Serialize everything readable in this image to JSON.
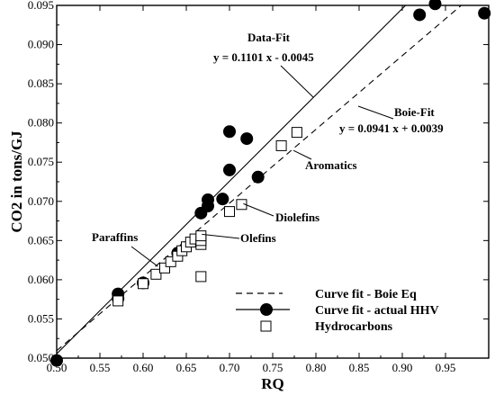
{
  "chart_data": {
    "type": "scatter",
    "xlabel": "RQ",
    "ylabel": "CO2 in tons/GJ",
    "xlim": [
      0.5,
      1.0
    ],
    "ylim": [
      0.05,
      0.095
    ],
    "x_ticks": [
      "0.50",
      "0.55",
      "0.60",
      "0.65",
      "0.70",
      "0.75",
      "0.80",
      "0.85",
      "0.90",
      "0.95"
    ],
    "y_ticks": [
      "0.050",
      "0.055",
      "0.060",
      "0.065",
      "0.070",
      "0.075",
      "0.080",
      "0.085",
      "0.090",
      "0.095"
    ],
    "grid": false,
    "series": [
      {
        "name": "Curve fit - actual HHV",
        "marker": "filled-circle",
        "color": "#000000",
        "points": [
          [
            0.5,
            0.0497
          ],
          [
            0.571,
            0.0582
          ],
          [
            0.571,
            0.0576
          ],
          [
            0.6,
            0.0596
          ],
          [
            0.64,
            0.0634
          ],
          [
            0.667,
            0.0685
          ],
          [
            0.675,
            0.0702
          ],
          [
            0.675,
            0.0694
          ],
          [
            0.692,
            0.0703
          ],
          [
            0.7,
            0.074
          ],
          [
            0.7,
            0.0789
          ],
          [
            0.72,
            0.078
          ],
          [
            0.733,
            0.0731
          ],
          [
            0.92,
            0.0938
          ],
          [
            0.938,
            0.0952
          ],
          [
            0.995,
            0.094
          ]
        ]
      },
      {
        "name": "Hydrocarbons",
        "marker": "open-square",
        "color": "#000000",
        "points": [
          [
            0.571,
            0.0573
          ],
          [
            0.6,
            0.0595
          ],
          [
            0.615,
            0.0607
          ],
          [
            0.625,
            0.0615
          ],
          [
            0.632,
            0.0623
          ],
          [
            0.64,
            0.063
          ],
          [
            0.645,
            0.0637
          ],
          [
            0.65,
            0.0642
          ],
          [
            0.655,
            0.0648
          ],
          [
            0.66,
            0.0652
          ],
          [
            0.667,
            0.0645
          ],
          [
            0.667,
            0.065
          ],
          [
            0.667,
            0.0656
          ],
          [
            0.667,
            0.0604
          ],
          [
            0.7,
            0.0687
          ],
          [
            0.714,
            0.0696
          ],
          [
            0.76,
            0.0771
          ],
          [
            0.778,
            0.0788
          ]
        ]
      }
    ],
    "fits": [
      {
        "name": "Data-Fit",
        "equation": "y = 0.1101 x - 0.0045",
        "slope": 0.1101,
        "intercept": -0.0045,
        "style": "solid"
      },
      {
        "name": "Boie-Fit",
        "equation": "y = 0.0941 x + 0.0039",
        "slope": 0.0941,
        "intercept": 0.0039,
        "style": "dashed"
      }
    ],
    "annotations": [
      {
        "text": "Aromatics",
        "x": 0.774,
        "y": 0.0765
      },
      {
        "text": "Diolefins",
        "x": 0.716,
        "y": 0.0697
      },
      {
        "text": "Olefins",
        "x": 0.668,
        "y": 0.0658
      },
      {
        "text": "Paraffins",
        "x": 0.617,
        "y": 0.0617
      }
    ],
    "legend": {
      "placement": "bottom-right",
      "entries": [
        {
          "label": "Curve fit - Boie Eq",
          "style": "dashed-line"
        },
        {
          "label": "Curve fit - actual HHV",
          "style": "solid-line-filled-circle"
        },
        {
          "label": "Hydrocarbons",
          "style": "open-square"
        }
      ]
    }
  }
}
